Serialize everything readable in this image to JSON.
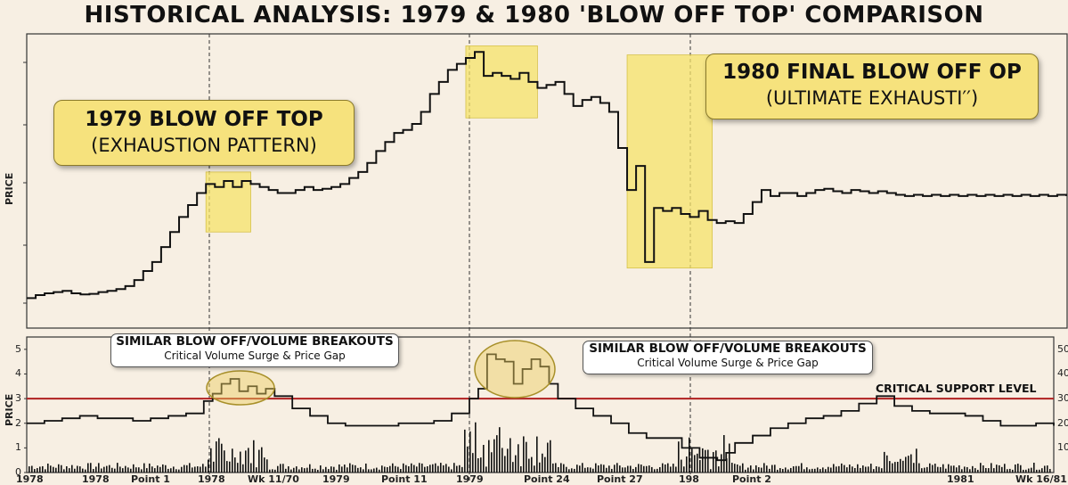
{
  "title": "HISTORICAL ANALYSIS: 1979 & 1980 'BLOW OFF TOP' COMPARISON",
  "colors": {
    "background": "#f7efe3",
    "line": "#111111",
    "highlight": "#f5e36a",
    "support": "#b02020",
    "volume": "#111111"
  },
  "callouts": {
    "top1979": {
      "line1": "1979 BLOW OFF TOP",
      "line2": "(EXHAUSTION PATTERN)"
    },
    "top1980": {
      "line1": "1980 FINAL BLOW OFF  OP",
      "line2": "(ULTIMATE EXHAUSTΙ′′)"
    },
    "vol1": {
      "line1": "SIMILAR BLOW OFF/VOLUME BREAKOUTS",
      "line2": "Critical Volume Surge & Price Gap"
    },
    "vol2": {
      "line1": "SIMILAR BLOW OFF/VOLUME BREAKOUTS",
      "line2": "Critical Volume Surge & Price Gap"
    },
    "support": "CRITICAL SUPPORT LEVEL"
  },
  "chart_data": [
    {
      "type": "line",
      "title": "HISTORICAL ANALYSIS: 1979 & 1980 'BLOW OFF TOP' COMPARISON",
      "ylabel": "PRICE",
      "xlabel": "",
      "grid": false,
      "x": [
        0,
        10,
        20,
        30,
        40,
        50,
        60,
        70,
        80,
        90,
        100,
        110,
        120,
        130,
        140,
        150,
        160,
        170,
        180,
        190,
        200,
        210,
        220,
        230,
        240,
        250,
        260,
        270,
        280,
        290,
        300,
        310,
        320,
        330,
        340,
        350,
        360,
        370,
        380,
        390,
        400,
        410,
        420,
        430,
        440,
        450,
        460,
        470,
        480,
        490,
        500,
        510,
        520,
        530,
        540,
        550,
        560,
        570,
        580,
        590,
        600,
        610,
        620,
        630,
        640,
        650,
        660,
        670,
        680,
        690,
        700,
        710,
        720,
        730,
        740,
        750,
        760,
        770,
        780,
        790,
        800,
        810,
        820,
        830,
        840,
        850,
        860,
        870,
        880,
        890,
        900,
        910,
        920,
        930,
        940,
        950,
        960,
        970,
        980,
        990,
        1000,
        1010,
        1020,
        1030,
        1040,
        1050,
        1060,
        1070,
        1080,
        1090,
        1100,
        1110,
        1120,
        1130,
        1140,
        1150,
        1160
      ],
      "series": [
        {
          "values": [
            1.0,
            1.05,
            1.08,
            1.1,
            1.12,
            1.08,
            1.06,
            1.07,
            1.1,
            1.12,
            1.15,
            1.2,
            1.3,
            1.45,
            1.6,
            1.85,
            2.1,
            2.35,
            2.55,
            2.75,
            2.9,
            2.85,
            2.95,
            2.85,
            2.95,
            2.9,
            2.85,
            2.8,
            2.75,
            2.75,
            2.8,
            2.85,
            2.8,
            2.82,
            2.85,
            2.9,
            3.0,
            3.1,
            3.25,
            3.45,
            3.6,
            3.75,
            3.8,
            3.9,
            4.1,
            4.4,
            4.6,
            4.8,
            4.9,
            5.0,
            5.1,
            4.7,
            4.75,
            4.7,
            4.65,
            4.75,
            4.6,
            4.5,
            4.55,
            4.6,
            4.4,
            4.2,
            4.3,
            4.35,
            4.25,
            4.1,
            3.5,
            2.8,
            3.2,
            1.6,
            2.5,
            2.45,
            2.5,
            2.4,
            2.35,
            2.45,
            2.3,
            2.25,
            2.28,
            2.25,
            2.4,
            2.6,
            2.8,
            2.7,
            2.75,
            2.75,
            2.7,
            2.75,
            2.8,
            2.82,
            2.78,
            2.75,
            2.8,
            2.78,
            2.75,
            2.78,
            2.75,
            2.72,
            2.7,
            2.72,
            2.7,
            2.72,
            2.7,
            2.72,
            2.7,
            2.72,
            2.7,
            2.72,
            2.7,
            2.72,
            2.7,
            2.72,
            2.7,
            2.72,
            2.7,
            2.72,
            2.7
          ]
        }
      ]
    },
    {
      "type": "line",
      "ylabel": "PRICE",
      "xlabel": "",
      "ylim": [
        0,
        5.5
      ],
      "yticks": [
        0,
        1,
        2,
        3,
        4,
        5
      ],
      "yticks_right": [
        "100",
        "200",
        "300",
        "400",
        "500"
      ],
      "support_level": 3.0,
      "x_tick_labels": [
        "1978",
        "1978",
        "Point 1",
        "1978",
        "Wk 11/70",
        "1979",
        "Point 11",
        "1979",
        "Point 24",
        "Point 27",
        "198",
        "Point 2",
        "1981",
        "Wk 16/81"
      ],
      "x": [
        0,
        20,
        40,
        60,
        80,
        100,
        120,
        140,
        160,
        180,
        200,
        210,
        220,
        230,
        240,
        250,
        260,
        270,
        280,
        300,
        320,
        340,
        360,
        380,
        400,
        420,
        440,
        460,
        480,
        500,
        510,
        520,
        530,
        540,
        550,
        560,
        570,
        580,
        590,
        600,
        620,
        640,
        660,
        680,
        700,
        720,
        740,
        760,
        780,
        790,
        800,
        820,
        840,
        860,
        880,
        900,
        920,
        940,
        960,
        980,
        1000,
        1020,
        1040,
        1060,
        1080,
        1100,
        1120,
        1140,
        1160
      ],
      "series": [
        {
          "values": [
            2.0,
            2.1,
            2.2,
            2.3,
            2.2,
            2.2,
            2.1,
            2.2,
            2.3,
            2.4,
            2.9,
            3.2,
            3.6,
            3.8,
            3.3,
            3.5,
            3.2,
            3.4,
            3.1,
            2.6,
            2.3,
            2.0,
            1.9,
            1.9,
            1.9,
            2.0,
            2.0,
            2.1,
            2.4,
            3.0,
            3.4,
            4.8,
            4.6,
            4.5,
            3.6,
            4.2,
            4.6,
            4.3,
            3.6,
            3.0,
            2.6,
            2.3,
            2.0,
            1.6,
            1.4,
            1.4,
            1.0,
            0.6,
            0.5,
            0.8,
            1.2,
            1.5,
            1.8,
            2.0,
            2.2,
            2.3,
            2.5,
            2.8,
            3.1,
            2.7,
            2.5,
            2.4,
            2.4,
            2.3,
            2.1,
            1.9,
            1.9,
            2.0,
            1.9
          ]
        }
      ]
    }
  ]
}
